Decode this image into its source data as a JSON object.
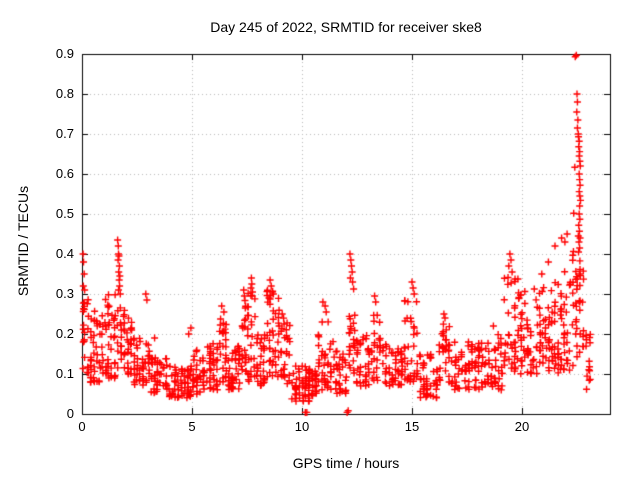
{
  "page": {
    "background": "#ffffff"
  },
  "chart_data": {
    "type": "scatter",
    "title": "Day 245 of 2022, SRMTID for receiver ske8",
    "xlabel": "GPS time / hours",
    "ylabel": "SRMTID / TECUs",
    "xlim": [
      0,
      24
    ],
    "ylim": [
      0,
      0.9
    ],
    "xticks": {
      "values": [
        0,
        5,
        10,
        15,
        20
      ],
      "labels": [
        "0",
        "5",
        "10",
        "15",
        "20"
      ]
    },
    "yticks": {
      "values": [
        0,
        0.1,
        0.2,
        0.3,
        0.4,
        0.5,
        0.6,
        0.7,
        0.8,
        0.9
      ],
      "labels": [
        "0",
        "0.1",
        "0.2",
        "0.3",
        "0.4",
        "0.5",
        "0.6",
        "0.7",
        "0.8",
        "0.9"
      ]
    },
    "grid": {
      "show": true,
      "color": "#b8b8b8",
      "style": "dotted"
    },
    "frame_color": "#000000",
    "text_color": "#000000",
    "marker": {
      "shape": "plus",
      "color": "#ff0000",
      "size": 7,
      "stroke": 1.4
    },
    "legend": "none",
    "series": [
      {
        "name": "srmtid",
        "points": [
          [
            0.05,
            0.4
          ],
          [
            0.07,
            0.38
          ],
          [
            0.1,
            0.35
          ],
          [
            0.06,
            0.32
          ],
          [
            0.12,
            0.31
          ],
          [
            1.62,
            0.435
          ],
          [
            1.65,
            0.42
          ],
          [
            1.66,
            0.4
          ],
          [
            1.68,
            0.395
          ],
          [
            1.64,
            0.385
          ],
          [
            1.7,
            0.37
          ],
          [
            1.67,
            0.355
          ],
          [
            1.72,
            0.345
          ],
          [
            1.69,
            0.335
          ],
          [
            1.71,
            0.32
          ],
          [
            1.66,
            0.31
          ],
          [
            1.74,
            0.3
          ],
          [
            2.9,
            0.3
          ],
          [
            2.95,
            0.285
          ],
          [
            3.3,
            0.19
          ],
          [
            4.85,
            0.2
          ],
          [
            4.95,
            0.215
          ],
          [
            6.35,
            0.27
          ],
          [
            6.45,
            0.255
          ],
          [
            7.7,
            0.34
          ],
          [
            7.72,
            0.325
          ],
          [
            7.68,
            0.315
          ],
          [
            7.75,
            0.305
          ],
          [
            7.73,
            0.295
          ],
          [
            7.35,
            0.31
          ],
          [
            7.38,
            0.295
          ],
          [
            8.55,
            0.335
          ],
          [
            8.6,
            0.32
          ],
          [
            8.65,
            0.305
          ],
          [
            8.7,
            0.3
          ],
          [
            8.5,
            0.29
          ],
          [
            9.1,
            0.25
          ],
          [
            10.15,
            0.004
          ],
          [
            10.22,
            0.004
          ],
          [
            12.05,
            0.004
          ],
          [
            12.1,
            0.008
          ],
          [
            10.95,
            0.28
          ],
          [
            11.05,
            0.27
          ],
          [
            11.1,
            0.255
          ],
          [
            12.18,
            0.4
          ],
          [
            12.22,
            0.385
          ],
          [
            12.25,
            0.37
          ],
          [
            12.28,
            0.355
          ],
          [
            12.2,
            0.34
          ],
          [
            12.3,
            0.33
          ],
          [
            13.3,
            0.295
          ],
          [
            13.35,
            0.28
          ],
          [
            15.0,
            0.33
          ],
          [
            15.05,
            0.315
          ],
          [
            15.1,
            0.3
          ],
          [
            16.45,
            0.25
          ],
          [
            16.5,
            0.24
          ],
          [
            18.7,
            0.22
          ],
          [
            19.45,
            0.4
          ],
          [
            19.5,
            0.385
          ],
          [
            19.4,
            0.37
          ],
          [
            19.55,
            0.355
          ],
          [
            20.9,
            0.35
          ],
          [
            21.2,
            0.38
          ],
          [
            21.5,
            0.42
          ],
          [
            21.8,
            0.44
          ],
          [
            21.95,
            0.43
          ],
          [
            22.05,
            0.45
          ],
          [
            22.42,
            0.893
          ],
          [
            22.47,
            0.897
          ],
          [
            22.5,
            0.8
          ],
          [
            22.52,
            0.78
          ],
          [
            22.49,
            0.755
          ],
          [
            22.54,
            0.735
          ],
          [
            22.52,
            0.715
          ],
          [
            22.56,
            0.7
          ],
          [
            22.57,
            0.693
          ],
          [
            22.6,
            0.682
          ],
          [
            22.58,
            0.668
          ],
          [
            22.62,
            0.656
          ],
          [
            22.6,
            0.645
          ],
          [
            22.63,
            0.632
          ],
          [
            22.65,
            0.62
          ],
          [
            22.4,
            0.617
          ],
          [
            22.6,
            0.6
          ],
          [
            22.62,
            0.586
          ],
          [
            22.64,
            0.572
          ],
          [
            22.6,
            0.556
          ],
          [
            22.63,
            0.545
          ],
          [
            22.66,
            0.534
          ],
          [
            22.62,
            0.52
          ],
          [
            22.35,
            0.502
          ],
          [
            22.6,
            0.5
          ],
          [
            22.63,
            0.487
          ],
          [
            22.58,
            0.472
          ],
          [
            22.61,
            0.457
          ],
          [
            22.56,
            0.445
          ],
          [
            22.64,
            0.44
          ],
          [
            22.59,
            0.43
          ],
          [
            22.62,
            0.415
          ],
          [
            22.57,
            0.405
          ]
        ],
        "band_segments": [
          [
            0.0,
            0.35,
            22,
            0.1,
            0.3,
            1.4
          ],
          [
            0.35,
            1.0,
            45,
            0.08,
            0.26,
            1.5
          ],
          [
            1.0,
            1.55,
            40,
            0.09,
            0.3,
            1.5
          ],
          [
            1.55,
            1.85,
            14,
            0.1,
            0.28,
            1.0
          ],
          [
            1.85,
            2.3,
            30,
            0.1,
            0.27,
            1.4
          ],
          [
            2.3,
            3.1,
            45,
            0.07,
            0.19,
            1.3
          ],
          [
            3.1,
            3.9,
            45,
            0.05,
            0.14,
            1.2
          ],
          [
            3.9,
            5.0,
            60,
            0.04,
            0.12,
            1.2
          ],
          [
            5.0,
            5.6,
            35,
            0.05,
            0.17,
            1.3
          ],
          [
            5.6,
            6.2,
            35,
            0.06,
            0.18,
            1.3
          ],
          [
            6.2,
            6.6,
            25,
            0.08,
            0.24,
            1.3
          ],
          [
            6.6,
            7.2,
            40,
            0.06,
            0.17,
            1.3
          ],
          [
            7.2,
            7.5,
            20,
            0.1,
            0.3,
            1.1
          ],
          [
            7.5,
            7.9,
            25,
            0.08,
            0.32,
            1.2
          ],
          [
            7.9,
            8.35,
            30,
            0.07,
            0.2,
            1.3
          ],
          [
            8.35,
            9.0,
            40,
            0.09,
            0.31,
            1.3
          ],
          [
            9.0,
            9.5,
            30,
            0.07,
            0.24,
            1.4
          ],
          [
            9.5,
            10.7,
            75,
            0.03,
            0.12,
            1.2
          ],
          [
            10.7,
            11.5,
            40,
            0.06,
            0.24,
            1.4
          ],
          [
            11.5,
            12.05,
            30,
            0.05,
            0.16,
            1.3
          ],
          [
            12.1,
            12.45,
            22,
            0.1,
            0.33,
            1.2
          ],
          [
            12.45,
            13.1,
            35,
            0.07,
            0.2,
            1.3
          ],
          [
            13.1,
            13.6,
            25,
            0.08,
            0.27,
            1.3
          ],
          [
            13.6,
            14.6,
            50,
            0.07,
            0.18,
            1.3
          ],
          [
            14.6,
            15.3,
            35,
            0.08,
            0.29,
            1.4
          ],
          [
            15.3,
            16.2,
            45,
            0.04,
            0.15,
            1.2
          ],
          [
            16.2,
            16.75,
            30,
            0.08,
            0.23,
            1.3
          ],
          [
            16.75,
            18.1,
            65,
            0.06,
            0.18,
            1.3
          ],
          [
            18.1,
            19.15,
            50,
            0.06,
            0.2,
            1.3
          ],
          [
            19.15,
            19.9,
            40,
            0.1,
            0.35,
            1.3
          ],
          [
            19.9,
            21.3,
            80,
            0.1,
            0.32,
            1.3
          ],
          [
            21.3,
            22.25,
            60,
            0.1,
            0.36,
            1.2
          ],
          [
            22.25,
            22.85,
            40,
            0.12,
            0.42,
            1.0
          ],
          [
            22.85,
            23.15,
            14,
            0.06,
            0.2,
            1.2
          ]
        ]
      }
    ]
  }
}
